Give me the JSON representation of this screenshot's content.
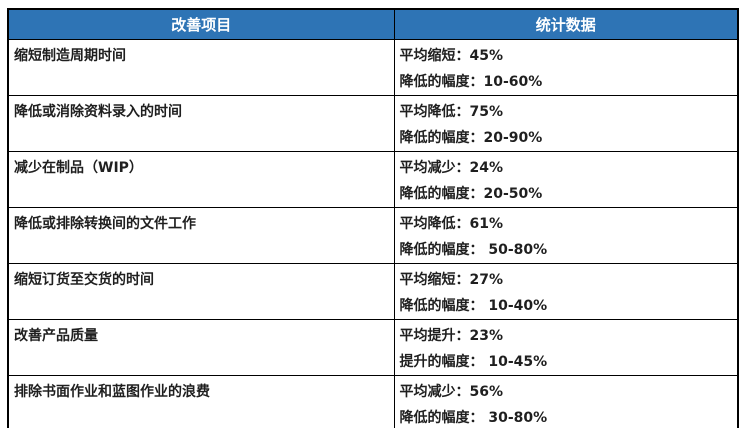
{
  "table": {
    "headers": [
      {
        "label": "改善项目"
      },
      {
        "label": "统计数据"
      }
    ],
    "rows": [
      {
        "item": "缩短制造周期时间",
        "line1": "平均缩短：45%",
        "line2": "降低的幅度：10-60%"
      },
      {
        "item": "降低或消除资料录入的时间",
        "line1": "平均降低：75%",
        "line2": "降低的幅度：20-90%"
      },
      {
        "item": "减少在制品（WIP）",
        "line1": "平均减少：24%",
        "line2": "降低的幅度：20-50%"
      },
      {
        "item": "降低或排除转换间的文件工作",
        "line1": "平均降低：61%",
        "line2": "降低的幅度： 50-80%"
      },
      {
        "item": "缩短订货至交货的时间",
        "line1": "平均缩短：27%",
        "line2": "降低的幅度： 10-40%"
      },
      {
        "item": "改善产品质量",
        "line1": "平均提升：23%",
        "line2": "提升的幅度： 10-45%"
      },
      {
        "item": "排除书面作业和蓝图作业的浪费",
        "line1": "平均减少：56%",
        "line2": "降低的幅度： 30-80%"
      }
    ],
    "colors": {
      "header_bg": "#2E74B5",
      "header_text": "#FFFFFF",
      "border": "#000000",
      "body_text": "#1F1F1F"
    }
  }
}
